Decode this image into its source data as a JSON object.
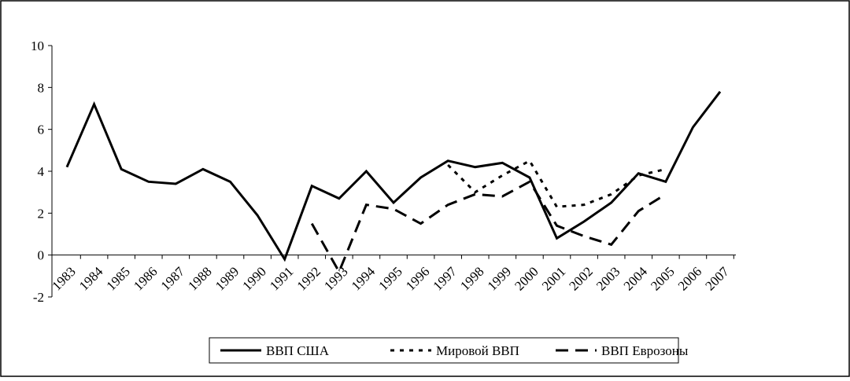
{
  "chart_data": {
    "type": "line",
    "categories": [
      "1983",
      "1984",
      "1985",
      "1986",
      "1987",
      "1988",
      "1989",
      "1990",
      "1991",
      "1992",
      "1993",
      "1994",
      "1995",
      "1996",
      "1997",
      "1998",
      "1999",
      "2000",
      "2001",
      "2002",
      "2003",
      "2004",
      "2005",
      "2006",
      "2007"
    ],
    "series": [
      {
        "name": "ВВП США",
        "color": "#000000",
        "dash": "solid",
        "values": [
          4.2,
          7.2,
          4.1,
          3.5,
          3.4,
          4.1,
          3.5,
          1.9,
          -0.2,
          3.3,
          2.7,
          4.0,
          2.5,
          3.7,
          4.5,
          4.2,
          4.4,
          3.7,
          0.8,
          1.6,
          2.5,
          3.9,
          3.5,
          6.1,
          7.8
        ]
      },
      {
        "name": "Мировой ВВП",
        "color": "#000000",
        "dash": "dotted",
        "values": [
          null,
          null,
          null,
          null,
          null,
          null,
          null,
          null,
          null,
          null,
          null,
          null,
          null,
          null,
          4.3,
          3.0,
          3.8,
          4.5,
          2.3,
          2.4,
          2.9,
          3.8,
          4.1,
          null,
          null
        ]
      },
      {
        "name": "ВВП Еврозоны",
        "color": "#000000",
        "dash": "dashed",
        "values": [
          null,
          null,
          null,
          null,
          null,
          null,
          null,
          null,
          null,
          1.5,
          -0.8,
          2.4,
          2.2,
          1.5,
          2.4,
          2.9,
          2.8,
          3.5,
          1.4,
          0.9,
          0.5,
          2.1,
          2.9,
          null,
          null
        ]
      }
    ],
    "ylim": [
      -2,
      10
    ],
    "yticks": [
      -2,
      0,
      2,
      4,
      6,
      8,
      10
    ],
    "legend": "bottom"
  }
}
